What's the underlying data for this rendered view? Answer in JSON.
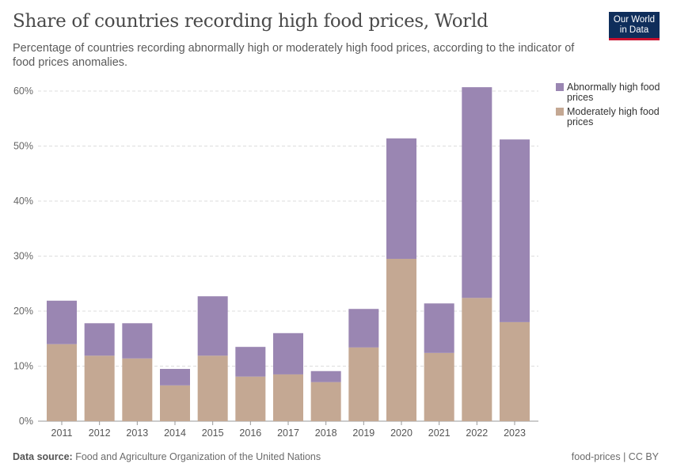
{
  "header": {
    "title": "Share of countries recording high food prices, World",
    "subtitle": "Percentage of countries recording abnormally high or moderately high food prices, according to the indicator of food prices anomalies.",
    "logo": "Our World in Data"
  },
  "footer": {
    "source_label": "Data source:",
    "source": "Food and Agriculture Organization of the United Nations",
    "license": "food-prices | CC BY"
  },
  "chart_data": {
    "type": "bar",
    "stacked": true,
    "categories": [
      "2011",
      "2012",
      "2013",
      "2014",
      "2015",
      "2016",
      "2017",
      "2018",
      "2019",
      "2020",
      "2021",
      "2022",
      "2023"
    ],
    "series": [
      {
        "name": "Moderately high food prices",
        "color": "#c4a893",
        "values": [
          14.0,
          11.9,
          11.4,
          6.5,
          11.9,
          8.1,
          8.5,
          7.1,
          13.4,
          29.5,
          12.4,
          22.4,
          18.0
        ]
      },
      {
        "name": "Abnormally high food prices",
        "color": "#9a86b2",
        "values": [
          7.9,
          5.9,
          6.4,
          3.0,
          10.8,
          5.4,
          7.5,
          2.0,
          7.0,
          21.9,
          9.0,
          38.3,
          33.2
        ]
      }
    ],
    "yticks": [
      "0%",
      "10%",
      "20%",
      "30%",
      "40%",
      "50%",
      "60%"
    ],
    "ylim": [
      0,
      60
    ],
    "grid": true,
    "legend": "right"
  }
}
